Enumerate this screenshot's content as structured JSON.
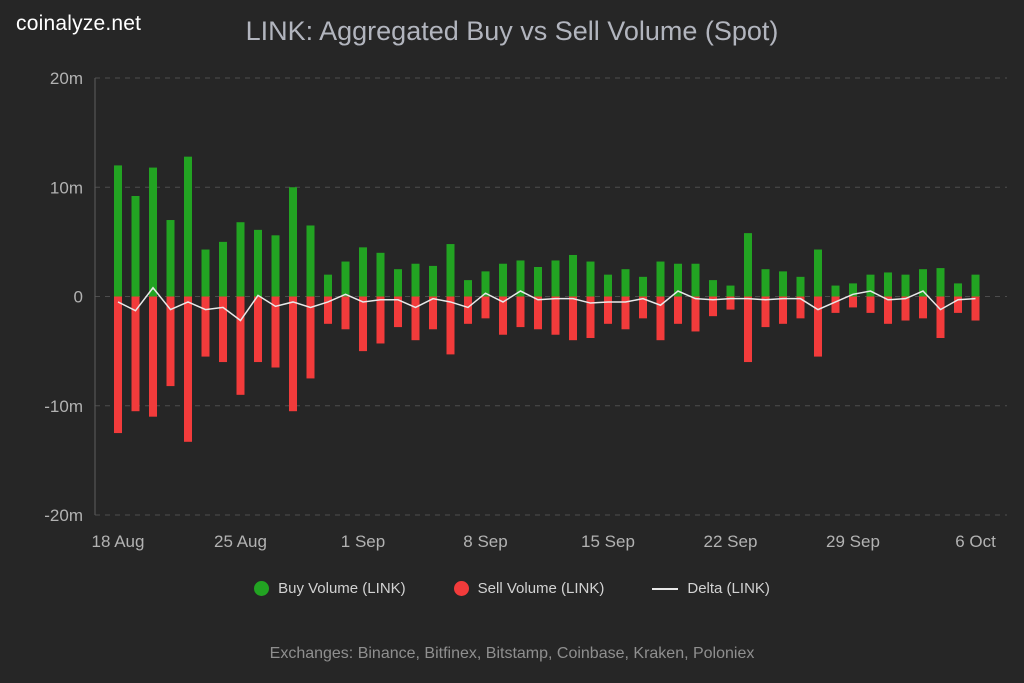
{
  "header": {
    "brand": "coinalyze.net"
  },
  "chart_data": {
    "type": "bar",
    "title": "LINK: Aggregated Buy vs Sell Volume (Spot)",
    "unit": "millions",
    "ylim": [
      -20,
      20
    ],
    "grid": "dashed horizontal lines",
    "legend_position": "bottom",
    "date_range": {
      "start": "18 Aug",
      "end": "6 Oct",
      "days": 50
    },
    "y_ticks": [
      {
        "label": "20m",
        "value": 20
      },
      {
        "label": "10m",
        "value": 10
      },
      {
        "label": "0",
        "value": 0
      },
      {
        "label": "-10m",
        "value": -10
      },
      {
        "label": "-20m",
        "value": -20
      }
    ],
    "x_ticks": [
      {
        "label": "18 Aug",
        "day": 0
      },
      {
        "label": "25 Aug",
        "day": 7
      },
      {
        "label": "1 Sep",
        "day": 14
      },
      {
        "label": "8 Sep",
        "day": 21
      },
      {
        "label": "15 Sep",
        "day": 28
      },
      {
        "label": "22 Sep",
        "day": 35
      },
      {
        "label": "29 Sep",
        "day": 42
      },
      {
        "label": "6 Oct",
        "day": 49
      }
    ],
    "series": [
      {
        "name": "Buy Volume (LINK)",
        "type": "bar",
        "color": "#22a322",
        "values": [
          12.0,
          9.2,
          11.8,
          7.0,
          12.8,
          4.3,
          5.0,
          6.8,
          6.1,
          5.6,
          10.0,
          6.5,
          2.0,
          3.2,
          4.5,
          4.0,
          2.5,
          3.0,
          2.8,
          4.8,
          1.5,
          2.3,
          3.0,
          3.3,
          2.7,
          3.3,
          3.8,
          3.2,
          2.0,
          2.5,
          1.8,
          3.2,
          3.0,
          3.0,
          1.5,
          1.0,
          5.8,
          2.5,
          2.3,
          1.8,
          4.3,
          1.0,
          1.2,
          2.0,
          2.2,
          2.0,
          2.5,
          2.6,
          1.2,
          2.0
        ]
      },
      {
        "name": "Sell Volume (LINK)",
        "type": "bar",
        "color": "#f23b3b",
        "values": [
          -12.5,
          -10.5,
          -11.0,
          -8.2,
          -13.3,
          -5.5,
          -6.0,
          -9.0,
          -6.0,
          -6.5,
          -10.5,
          -7.5,
          -2.5,
          -3.0,
          -5.0,
          -4.3,
          -2.8,
          -4.0,
          -3.0,
          -5.3,
          -2.5,
          -2.0,
          -3.5,
          -2.8,
          -3.0,
          -3.5,
          -4.0,
          -3.8,
          -2.5,
          -3.0,
          -2.0,
          -4.0,
          -2.5,
          -3.2,
          -1.8,
          -1.2,
          -6.0,
          -2.8,
          -2.5,
          -2.0,
          -5.5,
          -1.5,
          -1.0,
          -1.5,
          -2.5,
          -2.2,
          -2.0,
          -3.8,
          -1.5,
          -2.2
        ]
      },
      {
        "name": "Delta (LINK)",
        "type": "line",
        "color": "#e8e8e8",
        "derivation": "buy + sell",
        "values": [
          -0.5,
          -1.3,
          0.8,
          -1.2,
          -0.5,
          -1.2,
          -1.0,
          -2.2,
          0.1,
          -0.9,
          -0.5,
          -1.0,
          -0.5,
          0.2,
          -0.5,
          -0.3,
          -0.3,
          -1.0,
          -0.2,
          -0.5,
          -1.0,
          0.3,
          -0.5,
          0.5,
          -0.3,
          -0.2,
          -0.2,
          -0.6,
          -0.5,
          -0.5,
          -0.2,
          -0.8,
          0.5,
          -0.2,
          -0.3,
          -0.2,
          -0.2,
          -0.3,
          -0.2,
          -0.2,
          -1.2,
          -0.5,
          0.2,
          0.5,
          -0.3,
          -0.2,
          0.5,
          -1.2,
          -0.3,
          -0.2
        ]
      }
    ]
  },
  "footer": {
    "exchanges_note": "Exchanges: Binance, Bitfinex, Bitstamp, Coinbase, Kraken, Poloniex"
  }
}
